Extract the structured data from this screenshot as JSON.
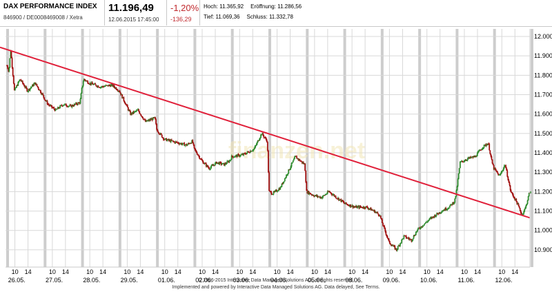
{
  "header": {
    "name": "DAX PERFORMANCE INDEX",
    "isin": "846900 / DE0008469008 / Xetra",
    "price": "11.196,49",
    "datetime": "12.06.2015 17:45:00",
    "change_pct": "-1,20%",
    "change_abs": "-136,29",
    "hoch": "Hoch: 11.365,92",
    "eroeffnung": "Eröffnung: 11.286,56",
    "tief": "Tief: 11.069,36",
    "schluss": "Schluss: 11.332,78"
  },
  "watermark": "finanzen.net",
  "footer": {
    "line1": "© 1996-2015 Interactive Data Managed Solutions AG, all rights reserved.",
    "line2": "Implemented and powered by Interactive Data Managed Solutions AG. Data delayed, See Terms."
  },
  "colors": {
    "up": "#2e8b2e",
    "down": "#a01010",
    "trend": "#e0203a",
    "grid": "#d8d8d8",
    "band": "#c8c8c8"
  },
  "chart_data": {
    "type": "candlestick",
    "ylim": [
      10850,
      12000
    ],
    "y_ticks": [
      12000,
      11900,
      11800,
      11700,
      11600,
      11500,
      11400,
      11300,
      11200,
      11100,
      11000,
      10900
    ],
    "y_tick_labels": [
      "12.000",
      "11.900",
      "11.800",
      "11.700",
      "11.600",
      "11.500",
      "11.400",
      "11.300",
      "11.200",
      "11.100",
      "11.000",
      "10.900"
    ],
    "days": [
      "26.05.",
      "27.05.",
      "28.05.",
      "29.05.",
      "01.06.",
      "02.06.",
      "03.06.",
      "04.06.",
      "05.06.",
      "08.06.",
      "09.06.",
      "10.06.",
      "11.06.",
      "12.06."
    ],
    "hour_labels": [
      "10",
      "14"
    ],
    "path": [
      [
        0.0,
        11850
      ],
      [
        0.05,
        11820
      ],
      [
        0.1,
        11930
      ],
      [
        0.2,
        11720
      ],
      [
        0.35,
        11780
      ],
      [
        0.55,
        11720
      ],
      [
        0.75,
        11760
      ],
      [
        0.95,
        11700
      ],
      [
        1.0,
        11680
      ],
      [
        1.1,
        11650
      ],
      [
        1.3,
        11620
      ],
      [
        1.5,
        11650
      ],
      [
        1.7,
        11640
      ],
      [
        1.95,
        11660
      ],
      [
        2.0,
        11730
      ],
      [
        2.05,
        11780
      ],
      [
        2.2,
        11760
      ],
      [
        2.5,
        11740
      ],
      [
        2.8,
        11750
      ],
      [
        3.0,
        11720
      ],
      [
        3.1,
        11680
      ],
      [
        3.3,
        11600
      ],
      [
        3.5,
        11620
      ],
      [
        3.7,
        11560
      ],
      [
        3.95,
        11580
      ],
      [
        4.0,
        11520
      ],
      [
        4.2,
        11470
      ],
      [
        4.4,
        11460
      ],
      [
        4.6,
        11450
      ],
      [
        4.8,
        11440
      ],
      [
        4.95,
        11460
      ],
      [
        5.0,
        11420
      ],
      [
        5.2,
        11360
      ],
      [
        5.4,
        11320
      ],
      [
        5.6,
        11350
      ],
      [
        5.8,
        11340
      ],
      [
        5.95,
        11360
      ],
      [
        6.0,
        11380
      ],
      [
        6.3,
        11390
      ],
      [
        6.6,
        11420
      ],
      [
        6.8,
        11500
      ],
      [
        6.95,
        11460
      ],
      [
        7.0,
        11200
      ],
      [
        7.1,
        11190
      ],
      [
        7.3,
        11220
      ],
      [
        7.5,
        11300
      ],
      [
        7.7,
        11380
      ],
      [
        7.95,
        11340
      ],
      [
        8.0,
        11200
      ],
      [
        8.2,
        11180
      ],
      [
        8.4,
        11170
      ],
      [
        8.6,
        11200
      ],
      [
        8.8,
        11170
      ],
      [
        8.95,
        11150
      ],
      [
        9.0,
        11140
      ],
      [
        9.3,
        11120
      ],
      [
        9.6,
        11120
      ],
      [
        9.8,
        11100
      ],
      [
        9.95,
        11080
      ],
      [
        10.0,
        11050
      ],
      [
        10.2,
        10940
      ],
      [
        10.4,
        10900
      ],
      [
        10.6,
        10970
      ],
      [
        10.8,
        10950
      ],
      [
        10.95,
        11000
      ],
      [
        11.0,
        11010
      ],
      [
        11.3,
        11060
      ],
      [
        11.6,
        11100
      ],
      [
        11.8,
        11120
      ],
      [
        11.95,
        11150
      ],
      [
        12.0,
        11200
      ],
      [
        12.1,
        11350
      ],
      [
        12.3,
        11370
      ],
      [
        12.5,
        11380
      ],
      [
        12.7,
        11430
      ],
      [
        12.85,
        11450
      ],
      [
        12.95,
        11350
      ],
      [
        13.0,
        11320
      ],
      [
        13.15,
        11280
      ],
      [
        13.3,
        11340
      ],
      [
        13.45,
        11200
      ],
      [
        13.6,
        11150
      ],
      [
        13.75,
        11080
      ],
      [
        13.85,
        11120
      ],
      [
        13.95,
        11196
      ]
    ],
    "trendline": [
      [
        0.0,
        11935
      ],
      [
        14.0,
        11065
      ]
    ]
  }
}
